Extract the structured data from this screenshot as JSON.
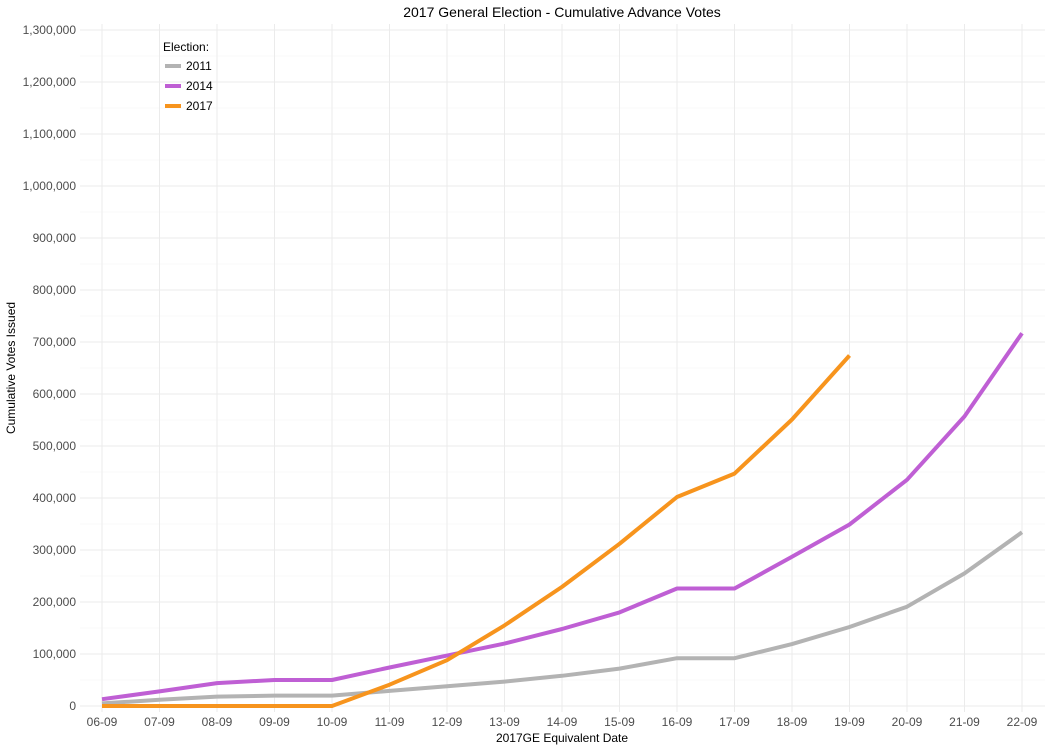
{
  "chart_data": {
    "type": "line",
    "title": "2017 General Election - Cumulative Advance Votes",
    "xlabel": "2017GE Equivalent Date",
    "ylabel": "Cumulative Votes Issued",
    "categories": [
      "06-09",
      "07-09",
      "08-09",
      "09-09",
      "10-09",
      "11-09",
      "12-09",
      "13-09",
      "14-09",
      "15-09",
      "16-09",
      "17-09",
      "18-09",
      "19-09",
      "20-09",
      "21-09",
      "22-09"
    ],
    "ylim": [
      0,
      1300000
    ],
    "yticks": [
      0,
      100000,
      200000,
      300000,
      400000,
      500000,
      600000,
      700000,
      800000,
      900000,
      1000000,
      1100000,
      1200000,
      1300000
    ],
    "ytick_labels": [
      "0",
      "100,000",
      "200,000",
      "300,000",
      "400,000",
      "500,000",
      "600,000",
      "700,000",
      "800,000",
      "900,000",
      "1,000,000",
      "1,100,000",
      "1,200,000",
      "1,300,000"
    ],
    "grid": true,
    "legend": {
      "title": "Election:",
      "position": "top-left"
    },
    "series": [
      {
        "name": "2011",
        "color": "#b3b3b3",
        "values": [
          5000,
          12000,
          18000,
          20000,
          20000,
          29000,
          38000,
          47000,
          58000,
          72000,
          92000,
          92000,
          119000,
          152000,
          191000,
          255000,
          334000
        ]
      },
      {
        "name": "2014",
        "color": "#bf5fd4",
        "values": [
          13000,
          28000,
          44000,
          50000,
          50000,
          74000,
          97000,
          120000,
          148000,
          180000,
          226000,
          226000,
          287000,
          349000,
          435000,
          557000,
          717000
        ]
      },
      {
        "name": "2017",
        "color": "#f7941d",
        "values": [
          0,
          0,
          0,
          0,
          0,
          41000,
          88000,
          155000,
          229000,
          312000,
          402000,
          447000,
          551000,
          674000,
          null,
          null,
          null
        ]
      }
    ]
  }
}
